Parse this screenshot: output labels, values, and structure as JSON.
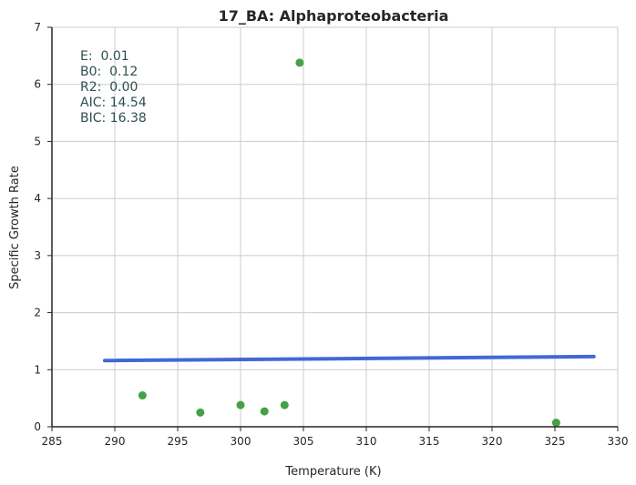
{
  "chart_data": {
    "type": "scatter",
    "title": "17_BA: Alphaproteobacteria",
    "xlabel": "Temperature (K)",
    "ylabel": "Specific Growth Rate",
    "xlim": [
      285,
      330
    ],
    "ylim": [
      0,
      7
    ],
    "xticks": [
      "285",
      "290",
      "295",
      "300",
      "305",
      "310",
      "315",
      "320",
      "325",
      "330"
    ],
    "yticks": [
      "0",
      "1",
      "2",
      "3",
      "4",
      "5",
      "6",
      "7"
    ],
    "grid": true,
    "points": [
      {
        "x": 292.2,
        "y": 0.55
      },
      {
        "x": 296.8,
        "y": 0.25
      },
      {
        "x": 300.0,
        "y": 0.38
      },
      {
        "x": 301.9,
        "y": 0.27
      },
      {
        "x": 303.5,
        "y": 0.38
      },
      {
        "x": 304.7,
        "y": 6.38
      },
      {
        "x": 325.1,
        "y": 0.07
      }
    ],
    "fit_line": {
      "x": [
        289.2,
        328.1
      ],
      "y": [
        1.16,
        1.23
      ]
    },
    "annotations": [
      "E:  0.01",
      "B0:  0.12",
      "R2:  0.00",
      "AIC: 14.54",
      "BIC: 16.38"
    ],
    "colors": {
      "points": "#46a146",
      "fit": "#4169d6",
      "grid": "#cccccc",
      "axis": "#262626"
    }
  }
}
